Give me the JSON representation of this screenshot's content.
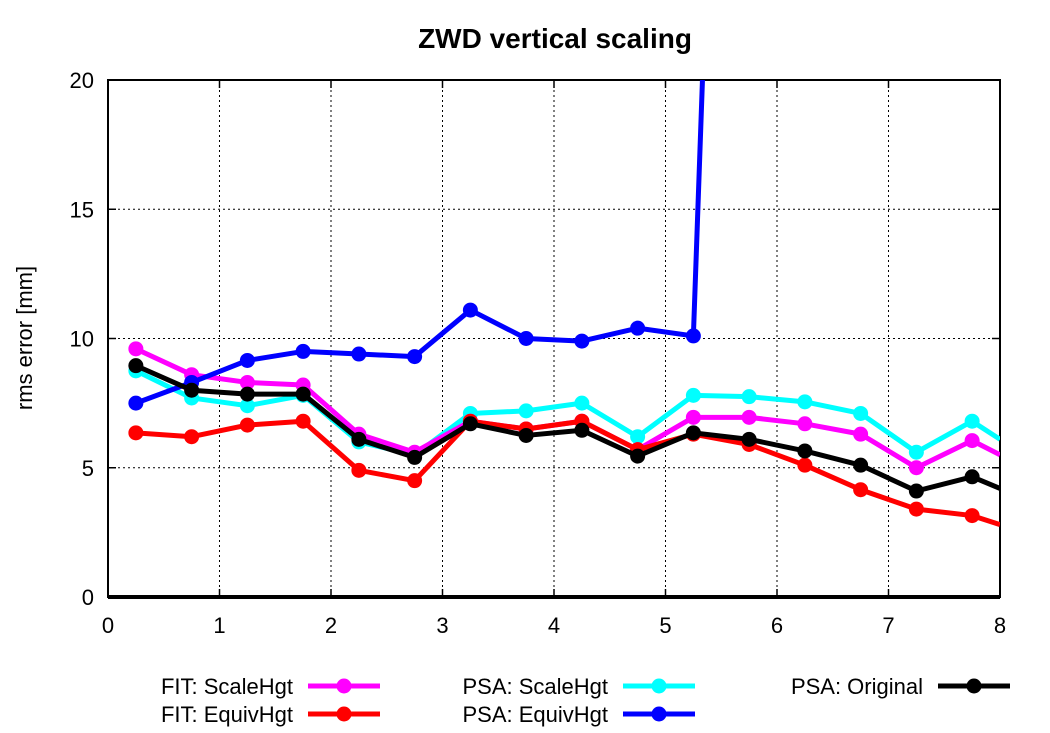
{
  "chart_data": {
    "type": "line",
    "title": "ZWD vertical scaling",
    "xlabel": "",
    "ylabel": "rms error [mm]",
    "xlim": [
      0,
      8
    ],
    "ylim": [
      0,
      20
    ],
    "xticks": [
      0,
      1,
      2,
      3,
      4,
      5,
      6,
      7,
      8
    ],
    "yticks": [
      0,
      5,
      10,
      15,
      20
    ],
    "grid": true,
    "legend_position": "bottom",
    "x": [
      0.25,
      0.75,
      1.25,
      1.75,
      2.25,
      2.75,
      3.25,
      3.75,
      4.25,
      4.75,
      5.25,
      5.75,
      6.25,
      6.75,
      7.25,
      7.75,
      8.0
    ],
    "series": [
      {
        "name": "FIT: ScaleHgt",
        "color": "#ff00ff",
        "values": [
          9.6,
          8.6,
          8.3,
          8.2,
          6.3,
          5.6,
          6.8,
          6.5,
          6.8,
          5.7,
          6.95,
          6.95,
          6.7,
          6.3,
          5.0,
          6.05,
          5.5
        ]
      },
      {
        "name": "FIT: EquivHgt",
        "color": "#ff0000",
        "values": [
          6.35,
          6.2,
          6.65,
          6.8,
          4.9,
          4.5,
          6.8,
          6.5,
          6.8,
          5.7,
          6.3,
          5.9,
          5.1,
          4.15,
          3.4,
          3.15,
          2.8
        ]
      },
      {
        "name": "PSA: ScaleHgt",
        "color": "#00ffff",
        "values": [
          8.75,
          7.7,
          7.4,
          7.8,
          6.0,
          5.5,
          7.1,
          7.2,
          7.5,
          6.2,
          7.8,
          7.75,
          7.55,
          7.1,
          5.6,
          6.8,
          6.1
        ]
      },
      {
        "name": "PSA: EquivHgt",
        "color": "#0000ff",
        "values": [
          7.5,
          8.3,
          9.15,
          9.5,
          9.4,
          9.3,
          11.1,
          10.0,
          9.9,
          10.4,
          10.1,
          null,
          null,
          null,
          null,
          null,
          null
        ],
        "note_spike": "rises above 20 just after x=5.25"
      },
      {
        "name": "PSA: Original",
        "color": "#000000",
        "values": [
          8.95,
          8.0,
          7.85,
          7.85,
          6.1,
          5.4,
          6.7,
          6.25,
          6.45,
          5.45,
          6.35,
          6.1,
          5.65,
          5.1,
          4.1,
          4.65,
          4.2
        ]
      }
    ]
  }
}
